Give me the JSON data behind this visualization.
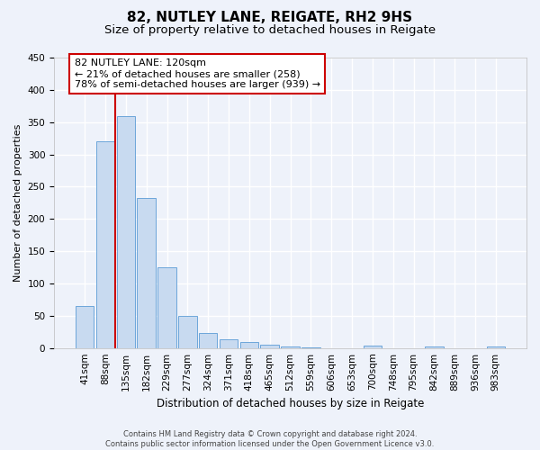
{
  "title1": "82, NUTLEY LANE, REIGATE, RH2 9HS",
  "title2": "Size of property relative to detached houses in Reigate",
  "xlabel": "Distribution of detached houses by size in Reigate",
  "ylabel": "Number of detached properties",
  "footnote": "Contains HM Land Registry data © Crown copyright and database right 2024.\nContains public sector information licensed under the Open Government Licence v3.0.",
  "categories": [
    "41sqm",
    "88sqm",
    "135sqm",
    "182sqm",
    "229sqm",
    "277sqm",
    "324sqm",
    "371sqm",
    "418sqm",
    "465sqm",
    "512sqm",
    "559sqm",
    "606sqm",
    "653sqm",
    "700sqm",
    "748sqm",
    "795sqm",
    "842sqm",
    "889sqm",
    "936sqm",
    "983sqm"
  ],
  "values": [
    65,
    320,
    360,
    233,
    125,
    50,
    23,
    14,
    9,
    5,
    2,
    1,
    0,
    0,
    4,
    0,
    0,
    3,
    0,
    0,
    3
  ],
  "bar_color": "#c8daf0",
  "bar_edge_color": "#5b9bd5",
  "vline_color": "#cc0000",
  "annotation_text": "82 NUTLEY LANE: 120sqm\n← 21% of detached houses are smaller (258)\n78% of semi-detached houses are larger (939) →",
  "annotation_box_color": "white",
  "annotation_box_edge": "#cc0000",
  "ylim": [
    0,
    450
  ],
  "yticks": [
    0,
    50,
    100,
    150,
    200,
    250,
    300,
    350,
    400,
    450
  ],
  "bg_color": "#eef2fa",
  "grid_color": "white",
  "title_fontsize": 11,
  "subtitle_fontsize": 9.5,
  "tick_fontsize": 7.5,
  "annotation_fontsize": 8,
  "ylabel_fontsize": 8,
  "xlabel_fontsize": 8.5,
  "footnote_fontsize": 6
}
